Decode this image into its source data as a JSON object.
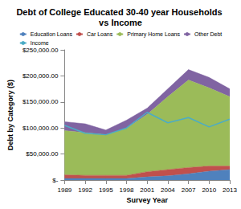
{
  "chart_data": {
    "type": "area",
    "title": "Debt of College Educated 30-40 year Households vs Income",
    "x_label": "Survey Year",
    "y_label": "Debt by Category ($)",
    "categories": [
      "1989",
      "1992",
      "1995",
      "1998",
      "2001",
      "2004",
      "2007",
      "2010",
      "2013"
    ],
    "series": [
      {
        "name": "Education Loans",
        "type": "area",
        "color": "#4f81bd",
        "values": [
          3000,
          3000,
          3000,
          3000,
          6000,
          8000,
          12000,
          17000,
          20000
        ]
      },
      {
        "name": "Car Loans",
        "type": "area",
        "color": "#c0504d",
        "values": [
          7000,
          6000,
          6000,
          6000,
          10000,
          12000,
          12000,
          10000,
          7000
        ]
      },
      {
        "name": "Primary Home Loans",
        "type": "area",
        "color": "#9bbb59",
        "values": [
          85000,
          82000,
          78000,
          90000,
          110000,
          140000,
          168000,
          150000,
          133000
        ]
      },
      {
        "name": "Other Debt",
        "type": "area",
        "color": "#8064a2",
        "values": [
          17000,
          17000,
          9000,
          16000,
          12000,
          15000,
          20000,
          20000,
          15000
        ]
      },
      {
        "name": "Income",
        "type": "line",
        "color": "#4bacc6",
        "values": [
          105000,
          90000,
          87000,
          100000,
          130000,
          110000,
          120000,
          102000,
          117000
        ]
      }
    ],
    "stacked": true,
    "ylim": [
      0,
      250000
    ],
    "yticks": [
      {
        "value": 0,
        "label": "$-"
      },
      {
        "value": 50000,
        "label": "$50,000.00"
      },
      {
        "value": 100000,
        "label": "$100,000.00"
      },
      {
        "value": 150000,
        "label": "$150,000.00"
      },
      {
        "value": 200000,
        "label": "$200,000.00"
      },
      {
        "value": 250000,
        "label": "$250,000.00"
      }
    ],
    "legend": "top",
    "grid": false
  }
}
